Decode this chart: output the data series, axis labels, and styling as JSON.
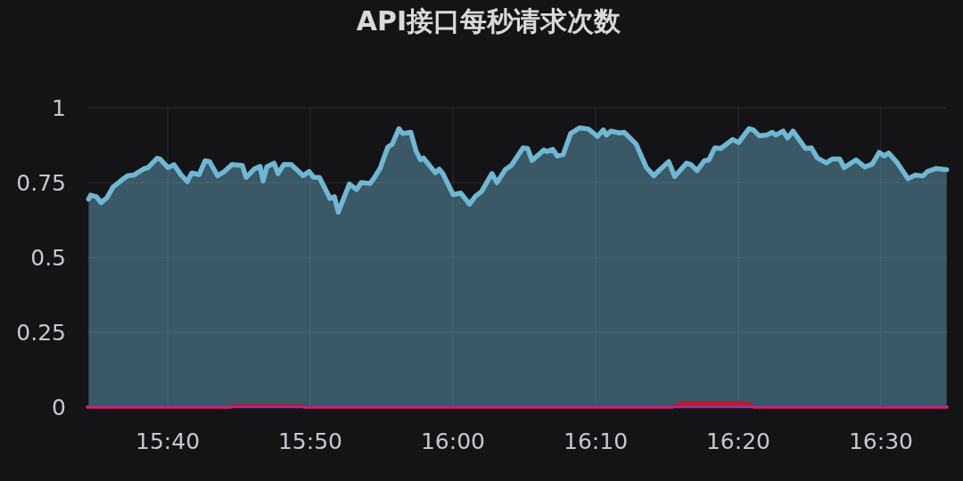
{
  "chart_data": {
    "type": "area",
    "title": "API接口每秒请求次数",
    "xlim": [
      15.5729,
      16.5771
    ],
    "xticks": [
      {
        "value": 15.6667,
        "label": "15:40"
      },
      {
        "value": 15.8333,
        "label": "15:50"
      },
      {
        "value": 16,
        "label": "16:00"
      },
      {
        "value": 16.1667,
        "label": "16:10"
      },
      {
        "value": 16.3333,
        "label": "16:20"
      },
      {
        "value": 16.5,
        "label": "16:30"
      }
    ],
    "ylim": [
      0,
      1
    ],
    "yticks": [
      0,
      0.25,
      0.5,
      0.75,
      1
    ],
    "grid": true,
    "marker": "none",
    "line_style": "solid",
    "series": [
      {
        "color": "#6fb7d3",
        "x": [
          15.5743,
          15.5768,
          15.5833,
          15.5889,
          15.5958,
          15.6028,
          15.6115,
          15.6201,
          15.6271,
          15.6393,
          15.6438,
          15.6542,
          15.6576,
          15.667,
          15.674,
          15.6826,
          15.6896,
          15.6948,
          15.7035,
          15.7104,
          15.7156,
          15.725,
          15.733,
          15.7417,
          15.7539,
          15.7583,
          15.7677,
          15.7747,
          15.7781,
          15.7826,
          15.791,
          15.7955,
          15.8024,
          15.8111,
          15.825,
          15.8319,
          15.8372,
          15.8441,
          15.8563,
          15.8615,
          15.866,
          15.8789,
          15.8875,
          15.8927,
          15.9031,
          15.9083,
          15.9153,
          15.9188,
          15.924,
          15.9292,
          15.9368,
          15.9413,
          15.9507,
          15.957,
          15.9622,
          15.9656,
          15.9795,
          15.984,
          15.9882,
          16.0003,
          16.009,
          16.0194,
          16.0264,
          16.0333,
          16.0455,
          16.0514,
          16.0611,
          16.0681,
          16.0819,
          16.0872,
          16.0924,
          16.1063,
          16.1097,
          16.1167,
          16.1219,
          16.1288,
          16.1375,
          16.1479,
          16.1583,
          16.1688,
          16.1757,
          16.1792,
          16.1844,
          16.1948,
          16.2,
          16.2139,
          16.226,
          16.2347,
          16.2417,
          16.2521,
          16.259,
          16.2729,
          16.2781,
          16.2851,
          16.2938,
          16.299,
          16.3059,
          16.3128,
          16.3267,
          16.3337,
          16.3458,
          16.351,
          16.358,
          16.3667,
          16.3729,
          16.3771,
          16.3857,
          16.391,
          16.3972,
          16.4118,
          16.4188,
          16.4257,
          16.4361,
          16.4431,
          16.4518,
          16.457,
          16.4708,
          16.4813,
          16.4899,
          16.4979,
          16.5038,
          16.509,
          16.5194,
          16.5316,
          16.5403,
          16.549,
          16.5542,
          16.5646,
          16.5768
        ],
        "values": [
          0.695,
          0.708,
          0.703,
          0.683,
          0.7,
          0.735,
          0.755,
          0.773,
          0.775,
          0.797,
          0.8,
          0.831,
          0.829,
          0.8,
          0.81,
          0.775,
          0.753,
          0.782,
          0.777,
          0.823,
          0.82,
          0.773,
          0.787,
          0.81,
          0.807,
          0.767,
          0.795,
          0.804,
          0.755,
          0.803,
          0.815,
          0.78,
          0.81,
          0.81,
          0.773,
          0.787,
          0.768,
          0.767,
          0.697,
          0.703,
          0.651,
          0.745,
          0.727,
          0.75,
          0.747,
          0.767,
          0.8,
          0.829,
          0.869,
          0.879,
          0.93,
          0.914,
          0.918,
          0.854,
          0.826,
          0.832,
          0.783,
          0.795,
          0.78,
          0.71,
          0.715,
          0.678,
          0.705,
          0.72,
          0.78,
          0.75,
          0.793,
          0.807,
          0.866,
          0.864,
          0.824,
          0.859,
          0.854,
          0.861,
          0.839,
          0.844,
          0.914,
          0.933,
          0.929,
          0.904,
          0.926,
          0.909,
          0.922,
          0.916,
          0.918,
          0.879,
          0.8,
          0.773,
          0.793,
          0.82,
          0.77,
          0.815,
          0.81,
          0.79,
          0.823,
          0.826,
          0.866,
          0.864,
          0.894,
          0.884,
          0.93,
          0.926,
          0.906,
          0.909,
          0.918,
          0.909,
          0.922,
          0.899,
          0.922,
          0.864,
          0.866,
          0.832,
          0.816,
          0.829,
          0.829,
          0.8,
          0.826,
          0.802,
          0.812,
          0.851,
          0.839,
          0.849,
          0.815,
          0.763,
          0.775,
          0.772,
          0.787,
          0.797,
          0.793
        ]
      },
      {
        "type": "line",
        "color": "#c4162a",
        "x": [
          15.5729,
          15.7396,
          15.7438,
          15.8229,
          15.8271,
          16.2563,
          16.2667,
          16.3438,
          16.3521,
          16.5771
        ],
        "values": [
          0,
          0,
          0.004,
          0.004,
          0,
          0,
          0.013,
          0.013,
          0,
          0
        ]
      },
      {
        "type": "line",
        "color": "#a2319f",
        "x": [
          15.5729,
          16.5771
        ],
        "values": [
          0,
          0
        ]
      }
    ]
  }
}
